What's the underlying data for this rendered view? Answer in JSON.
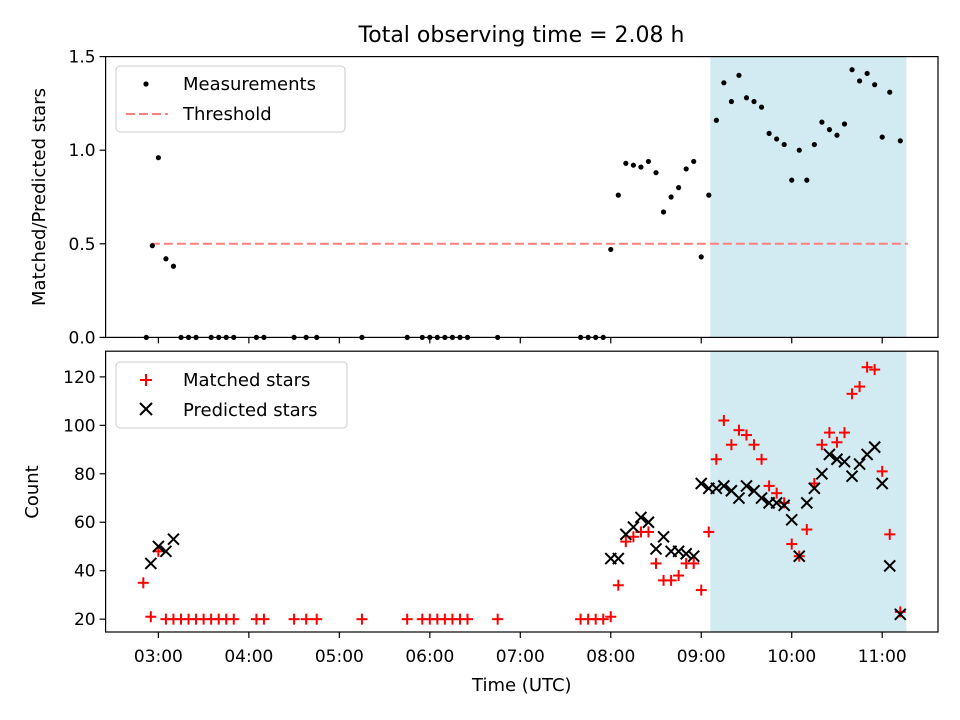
{
  "figure": {
    "title": "Total observing time = 2.08 h",
    "x_tick_labels": [
      "03:00",
      "04:00",
      "05:00",
      "06:00",
      "07:00",
      "08:00",
      "09:00",
      "10:00",
      "11:00"
    ]
  },
  "chart_data": [
    {
      "type": "scatter",
      "ylabel": "Matched/Predicted stars",
      "ylim": [
        0,
        1.5
      ],
      "xlim": [
        "02:25",
        "11:37"
      ],
      "x_axis": "Time (UTC)",
      "y_tick_labels": [
        "0.0",
        "0.5",
        "1.0",
        "1.5"
      ],
      "threshold": 0.5,
      "threshold_range": [
        "02:55",
        "11:17"
      ],
      "shaded_region": [
        "09:06",
        "11:16"
      ],
      "shaded_color": "#add8e6",
      "legend": {
        "location": "upper left",
        "entries": [
          "Measurements",
          "Threshold"
        ]
      },
      "series": [
        {
          "name": "Measurements",
          "color": "#000000",
          "marker": "dot",
          "points": [
            [
              "02:52",
              0.0
            ],
            [
              "02:56",
              0.49
            ],
            [
              "03:00",
              0.96
            ],
            [
              "03:05",
              0.42
            ],
            [
              "03:10",
              0.38
            ],
            [
              "03:15",
              0.0
            ],
            [
              "03:20",
              0.0
            ],
            [
              "03:25",
              0.0
            ],
            [
              "03:35",
              0.0
            ],
            [
              "03:40",
              0.0
            ],
            [
              "03:45",
              0.0
            ],
            [
              "03:50",
              0.0
            ],
            [
              "04:05",
              0.0
            ],
            [
              "04:10",
              0.0
            ],
            [
              "04:30",
              0.0
            ],
            [
              "04:38",
              0.0
            ],
            [
              "04:45",
              0.0
            ],
            [
              "05:15",
              0.0
            ],
            [
              "05:45",
              0.0
            ],
            [
              "05:55",
              0.0
            ],
            [
              "06:00",
              0.0
            ],
            [
              "06:05",
              0.0
            ],
            [
              "06:10",
              0.0
            ],
            [
              "06:15",
              0.0
            ],
            [
              "06:20",
              0.0
            ],
            [
              "06:25",
              0.0
            ],
            [
              "06:45",
              0.0
            ],
            [
              "07:40",
              0.0
            ],
            [
              "07:45",
              0.0
            ],
            [
              "07:50",
              0.0
            ],
            [
              "07:55",
              0.0
            ],
            [
              "08:00",
              0.47
            ],
            [
              "08:05",
              0.76
            ],
            [
              "08:10",
              0.93
            ],
            [
              "08:15",
              0.92
            ],
            [
              "08:20",
              0.91
            ],
            [
              "08:25",
              0.94
            ],
            [
              "08:30",
              0.88
            ],
            [
              "08:35",
              0.67
            ],
            [
              "08:40",
              0.75
            ],
            [
              "08:45",
              0.8
            ],
            [
              "08:50",
              0.9
            ],
            [
              "08:55",
              0.94
            ],
            [
              "09:00",
              0.43
            ],
            [
              "09:05",
              0.76
            ],
            [
              "09:10",
              1.16
            ],
            [
              "09:15",
              1.36
            ],
            [
              "09:20",
              1.26
            ],
            [
              "09:25",
              1.4
            ],
            [
              "09:30",
              1.28
            ],
            [
              "09:35",
              1.26
            ],
            [
              "09:40",
              1.23
            ],
            [
              "09:45",
              1.09
            ],
            [
              "09:50",
              1.06
            ],
            [
              "09:55",
              1.03
            ],
            [
              "10:00",
              0.84
            ],
            [
              "10:05",
              1.0
            ],
            [
              "10:10",
              0.84
            ],
            [
              "10:15",
              1.03
            ],
            [
              "10:20",
              1.15
            ],
            [
              "10:25",
              1.11
            ],
            [
              "10:30",
              1.08
            ],
            [
              "10:35",
              1.14
            ],
            [
              "10:40",
              1.43
            ],
            [
              "10:45",
              1.37
            ],
            [
              "10:50",
              1.41
            ],
            [
              "10:55",
              1.35
            ],
            [
              "11:00",
              1.07
            ],
            [
              "11:05",
              1.31
            ],
            [
              "11:12",
              1.05
            ]
          ]
        }
      ]
    },
    {
      "type": "scatter",
      "xlabel": "Time (UTC)",
      "ylabel": "Count",
      "ylim": [
        14.7,
        130.6
      ],
      "xlim": [
        "02:25",
        "11:37"
      ],
      "y_tick_labels": [
        "20",
        "40",
        "60",
        "80",
        "100",
        "120"
      ],
      "shaded_region": [
        "09:06",
        "11:16"
      ],
      "shaded_color": "#add8e6",
      "legend": {
        "location": "upper left",
        "entries": [
          "Matched stars",
          "Predicted stars"
        ]
      },
      "series": [
        {
          "name": "Matched stars",
          "color": "#ff0000",
          "marker": "plus",
          "points": [
            [
              "02:50",
              35
            ],
            [
              "02:55",
              21
            ],
            [
              "03:00",
              48
            ],
            [
              "03:05",
              20
            ],
            [
              "03:10",
              20
            ],
            [
              "03:15",
              20
            ],
            [
              "03:20",
              20
            ],
            [
              "03:25",
              20
            ],
            [
              "03:30",
              20
            ],
            [
              "03:35",
              20
            ],
            [
              "03:40",
              20
            ],
            [
              "03:45",
              20
            ],
            [
              "03:50",
              20
            ],
            [
              "04:05",
              20
            ],
            [
              "04:10",
              20
            ],
            [
              "04:30",
              20
            ],
            [
              "04:38",
              20
            ],
            [
              "04:45",
              20
            ],
            [
              "05:15",
              20
            ],
            [
              "05:45",
              20
            ],
            [
              "05:55",
              20
            ],
            [
              "06:00",
              20
            ],
            [
              "06:05",
              20
            ],
            [
              "06:10",
              20
            ],
            [
              "06:15",
              20
            ],
            [
              "06:20",
              20
            ],
            [
              "06:25",
              20
            ],
            [
              "06:45",
              20
            ],
            [
              "07:40",
              20
            ],
            [
              "07:45",
              20
            ],
            [
              "07:50",
              20
            ],
            [
              "07:55",
              20
            ],
            [
              "08:00",
              21
            ],
            [
              "08:05",
              34
            ],
            [
              "08:10",
              52
            ],
            [
              "08:15",
              54
            ],
            [
              "08:20",
              56
            ],
            [
              "08:25",
              56
            ],
            [
              "08:30",
              43
            ],
            [
              "08:35",
              36
            ],
            [
              "08:40",
              36
            ],
            [
              "08:45",
              38
            ],
            [
              "08:50",
              43
            ],
            [
              "08:55",
              43
            ],
            [
              "09:00",
              32
            ],
            [
              "09:05",
              56
            ],
            [
              "09:10",
              86
            ],
            [
              "09:15",
              102
            ],
            [
              "09:20",
              92
            ],
            [
              "09:25",
              98
            ],
            [
              "09:30",
              96
            ],
            [
              "09:35",
              92
            ],
            [
              "09:40",
              86
            ],
            [
              "09:45",
              75
            ],
            [
              "09:50",
              72
            ],
            [
              "09:55",
              68
            ],
            [
              "10:00",
              51
            ],
            [
              "10:05",
              46
            ],
            [
              "10:10",
              57
            ],
            [
              "10:15",
              76
            ],
            [
              "10:20",
              92
            ],
            [
              "10:25",
              97
            ],
            [
              "10:30",
              93
            ],
            [
              "10:35",
              97
            ],
            [
              "10:40",
              113
            ],
            [
              "10:45",
              116
            ],
            [
              "10:50",
              124
            ],
            [
              "10:55",
              123
            ],
            [
              "11:00",
              81
            ],
            [
              "11:05",
              55
            ],
            [
              "11:12",
              23
            ]
          ]
        },
        {
          "name": "Predicted stars",
          "color": "#000000",
          "marker": "x",
          "points": [
            [
              "02:55",
              43
            ],
            [
              "03:00",
              50
            ],
            [
              "03:05",
              48
            ],
            [
              "03:10",
              53
            ],
            [
              "08:00",
              45
            ],
            [
              "08:05",
              45
            ],
            [
              "08:10",
              55
            ],
            [
              "08:15",
              58
            ],
            [
              "08:20",
              62
            ],
            [
              "08:25",
              60
            ],
            [
              "08:30",
              49
            ],
            [
              "08:35",
              54
            ],
            [
              "08:40",
              48
            ],
            [
              "08:45",
              48
            ],
            [
              "08:50",
              47
            ],
            [
              "08:55",
              46
            ],
            [
              "09:00",
              76
            ],
            [
              "09:05",
              74
            ],
            [
              "09:10",
              74
            ],
            [
              "09:15",
              75
            ],
            [
              "09:20",
              73
            ],
            [
              "09:25",
              70
            ],
            [
              "09:30",
              75
            ],
            [
              "09:35",
              73
            ],
            [
              "09:40",
              70
            ],
            [
              "09:45",
              68
            ],
            [
              "09:50",
              68
            ],
            [
              "09:55",
              67
            ],
            [
              "10:00",
              61
            ],
            [
              "10:05",
              46
            ],
            [
              "10:10",
              68
            ],
            [
              "10:15",
              74
            ],
            [
              "10:20",
              80
            ],
            [
              "10:25",
              88
            ],
            [
              "10:30",
              86
            ],
            [
              "10:35",
              85
            ],
            [
              "10:40",
              79
            ],
            [
              "10:45",
              84
            ],
            [
              "10:50",
              88
            ],
            [
              "10:55",
              91
            ],
            [
              "11:00",
              76
            ],
            [
              "11:05",
              42
            ],
            [
              "11:12",
              22
            ]
          ]
        }
      ]
    }
  ]
}
